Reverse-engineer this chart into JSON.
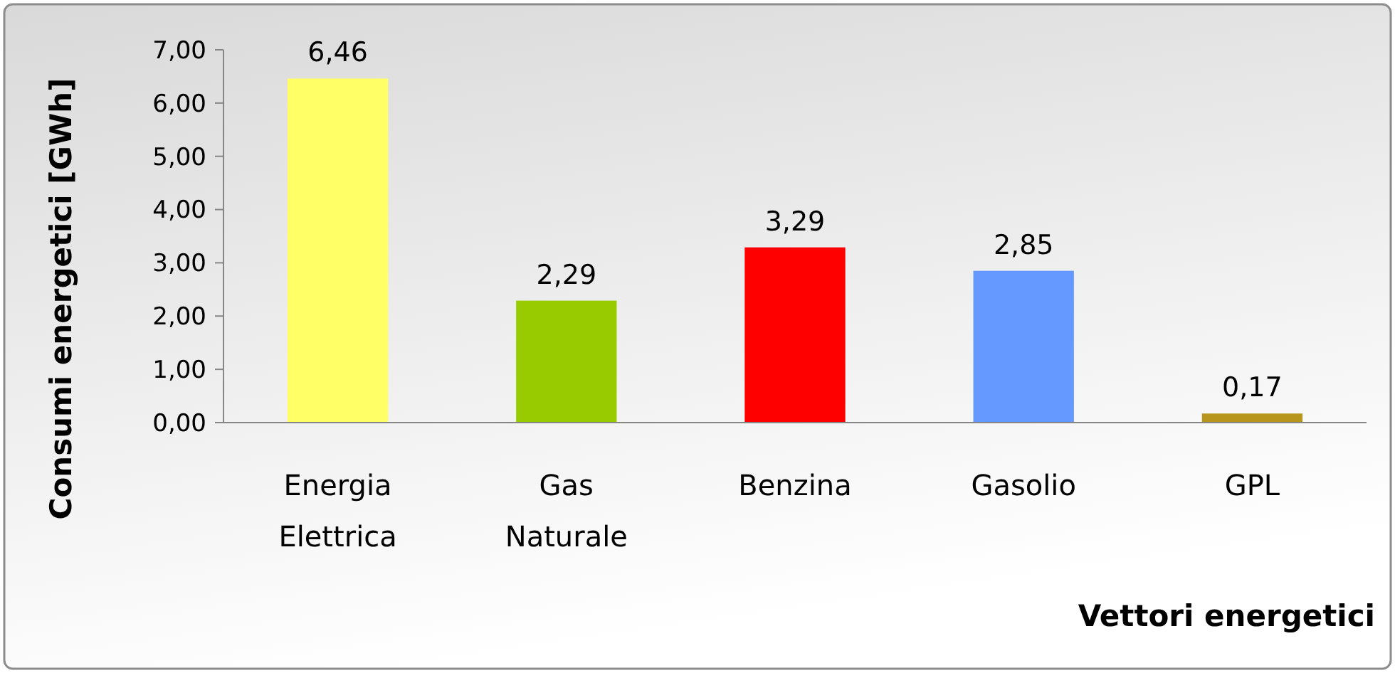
{
  "chart_data": {
    "type": "bar",
    "xlabel": "Vettori energetici",
    "ylabel": "Consumi energetici [GWh]",
    "categories": [
      "Energia Elettrica",
      "Gas Naturale",
      "Benzina",
      "Gasolio",
      "GPL"
    ],
    "values": [
      6.46,
      2.29,
      3.29,
      2.85,
      0.17
    ],
    "colors": [
      "#ffff66",
      "#99cc00",
      "#ff0000",
      "#6699ff",
      "#b8961e"
    ],
    "value_labels": [
      "6,46",
      "2,29",
      "3,29",
      "2,85",
      "0,17"
    ],
    "ylim": [
      0,
      7
    ],
    "yticks": [
      {
        "value": 0,
        "label": "0,00"
      },
      {
        "value": 1,
        "label": "1,00"
      },
      {
        "value": 2,
        "label": "2,00"
      },
      {
        "value": 3,
        "label": "3,00"
      },
      {
        "value": 4,
        "label": "4,00"
      },
      {
        "value": 5,
        "label": "5,00"
      },
      {
        "value": 6,
        "label": "6,00"
      },
      {
        "value": 7,
        "label": "7,00"
      }
    ],
    "grid": false
  }
}
